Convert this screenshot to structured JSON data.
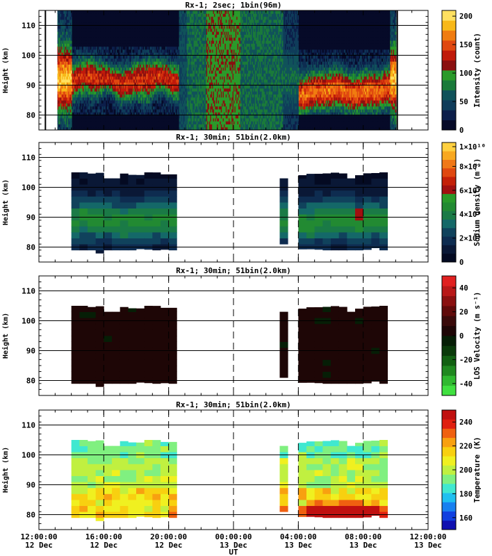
{
  "chart_data": {
    "type": "heatmap",
    "x_label": "UT",
    "x_ticks": [
      {
        "time": "12:00:00",
        "date": "12 Dec",
        "hour": 12
      },
      {
        "time": "16:00:00",
        "date": "12 Dec",
        "hour": 16
      },
      {
        "time": "20:00:00",
        "date": "12 Dec",
        "hour": 20
      },
      {
        "time": "00:00:00",
        "date": "13 Dec",
        "hour": 24
      },
      {
        "time": "04:00:00",
        "date": "13 Dec",
        "hour": 28
      },
      {
        "time": "08:00:00",
        "date": "13 Dec",
        "hour": 32
      },
      {
        "time": "12:00:00",
        "date": "13 Dec",
        "hour": 36
      }
    ],
    "xlim_hours": [
      12,
      36
    ],
    "panels": [
      {
        "title": "Rx-1;  2sec; 1bin(96m)",
        "ylabel": "Height (km)",
        "ylim": [
          75,
          115
        ],
        "y_ticks": [
          80,
          90,
          100,
          110
        ],
        "colorbar_label": "Intensity (count)",
        "colorbar_ticks": [
          "0",
          "50",
          "100",
          "150",
          "200"
        ],
        "colorbar_range": [
          0,
          210
        ],
        "colors": [
          "#060a28",
          "#0c1e4a",
          "#0f3c5a",
          "#10525a",
          "#1a7a3a",
          "#2a9a2a",
          "#8a1010",
          "#c01a0a",
          "#e04810",
          "#f07c10",
          "#f8b818",
          "#ffe060"
        ],
        "field": "intensity"
      },
      {
        "title": "Rx-1; 30min; 51bin(2.0km)",
        "ylabel": "Height (km)",
        "ylim": [
          75,
          115
        ],
        "y_ticks": [
          80,
          90,
          100,
          110
        ],
        "colorbar_label": "Sodium density (m⁻³)",
        "colorbar_ticks": [
          "0",
          "2×10⁹",
          "4×10⁹",
          "6×10⁹",
          "8×10⁹",
          "1×10¹⁰"
        ],
        "colorbar_range": [
          0,
          10
        ],
        "colors": [
          "#040a22",
          "#0a1836",
          "#0e2c50",
          "#10425c",
          "#146868",
          "#1a7a46",
          "#228a32",
          "#2a9a2a",
          "#a01010",
          "#c42008",
          "#e04810",
          "#f07818",
          "#f8a820",
          "#ffd040"
        ],
        "field": "density"
      },
      {
        "title": "Rx-1; 30min; 51bin(2.0km)",
        "ylabel": "Height (km)",
        "ylim": [
          75,
          115
        ],
        "y_ticks": [
          80,
          90,
          100,
          110
        ],
        "colorbar_label": "LOS Velocity (m s⁻¹)",
        "colorbar_ticks": [
          "-40",
          "-20",
          "0",
          "20",
          "40"
        ],
        "colorbar_range": [
          -50,
          50
        ],
        "colors": [
          "#40e040",
          "#30b830",
          "#208820",
          "#126012",
          "#0a3a0a",
          "#061e06",
          "#1e0606",
          "#3a0a0a",
          "#600a0a",
          "#8a1010",
          "#b81818",
          "#e02020"
        ],
        "field": "velocity"
      },
      {
        "title": "Rx-1; 30min; 51bin(2.0km)",
        "ylabel": "Height (km)",
        "ylim": [
          75,
          115
        ],
        "y_ticks": [
          80,
          90,
          100,
          110
        ],
        "colorbar_label": "Temperature (K)",
        "colorbar_ticks": [
          "160",
          "180",
          "200",
          "220",
          "240"
        ],
        "colorbar_range": [
          150,
          250
        ],
        "colors": [
          "#1010b0",
          "#1040e0",
          "#1880f0",
          "#20c0f0",
          "#40e8d0",
          "#80f080",
          "#c0f040",
          "#f0f020",
          "#f8d010",
          "#f8a010",
          "#f06010",
          "#e02010",
          "#c01010"
        ],
        "field": "temperature"
      }
    ],
    "data_segments_hours": [
      [
        14.0,
        20.7
      ],
      [
        26.8,
        27.4
      ],
      [
        28.0,
        33.6
      ]
    ],
    "dashed_lines_hours": [
      16,
      20,
      24,
      28,
      32
    ]
  }
}
